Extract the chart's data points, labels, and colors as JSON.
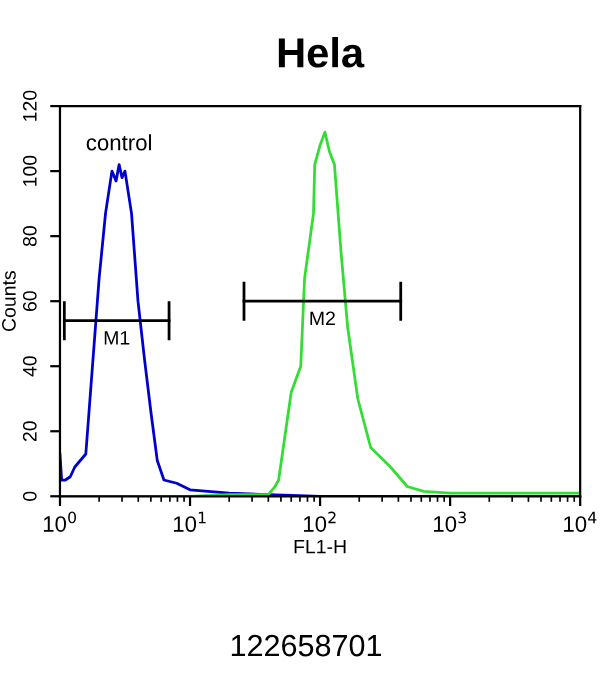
{
  "chart_data": {
    "type": "line",
    "title": "Hela",
    "xlabel": "FL1-H",
    "ylabel": "Counts",
    "log": "x",
    "xlim": [
      1,
      10000
    ],
    "ylim": [
      0,
      120
    ],
    "xticks": [
      {
        "value": 1,
        "label": "10$^{0}$"
      },
      {
        "value": 10,
        "label": "10$^{1}$"
      },
      {
        "value": 100,
        "label": "10$^{2}$"
      },
      {
        "value": 1000,
        "label": "10$^{3}$"
      },
      {
        "value": 10000,
        "label": "10$^{4}$"
      }
    ],
    "yticks": [
      0,
      20,
      40,
      60,
      80,
      100,
      120
    ],
    "grid": false,
    "legend": false,
    "marker": "none",
    "line_style": "solid",
    "series": [
      {
        "name": "control",
        "color": "#0000cc",
        "x": [
          1.0,
          1.03,
          1.1,
          1.2,
          1.3,
          1.58,
          2.0,
          2.24,
          2.51,
          2.7,
          2.85,
          3.0,
          3.16,
          3.55,
          3.98,
          4.47,
          5.0,
          5.6,
          6.3,
          7.9,
          10,
          20,
          40,
          60,
          100,
          1000,
          10000
        ],
        "values": [
          13,
          5,
          5,
          6,
          9,
          13,
          67,
          87,
          100,
          97,
          102,
          98,
          100,
          87,
          60,
          42,
          26,
          11,
          5,
          4,
          2,
          1,
          0.5,
          0.3,
          0,
          0,
          0
        ]
      },
      {
        "color": "#33dd33",
        "x": [
          1,
          10,
          20,
          40,
          45,
          48,
          60,
          71,
          76,
          89,
          91,
          100,
          109,
          118,
          129,
          145,
          163,
          195,
          245,
          348,
          468,
          627,
          1000,
          3000,
          10000
        ],
        "values": [
          0,
          0,
          0.5,
          0.5,
          3,
          5,
          32,
          40,
          67,
          87,
          102,
          108,
          112,
          106,
          102,
          75,
          52,
          30,
          15,
          9,
          3,
          1.5,
          1,
          1,
          1
        ]
      },
      {
        "name": "M1",
        "type": "line",
        "color": "#000000",
        "x": [
          1.08,
          6.9
        ],
        "values": [
          54,
          54
        ],
        "errors": [
          6,
          6
        ]
      },
      {
        "name": "M2",
        "type": "line",
        "color": "#000000",
        "x": [
          26,
          417
        ],
        "values": [
          60,
          60
        ],
        "errors": [
          6,
          6
        ]
      }
    ],
    "annotations": [
      "122658701"
    ]
  }
}
